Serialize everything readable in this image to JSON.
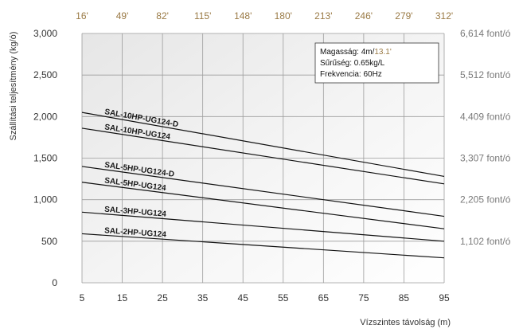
{
  "chart_data": {
    "type": "line",
    "xlabel": "Vízszintes távolság (m)",
    "ylabel": "Szállítási teljesítmény (kg/ó)",
    "xlim": [
      5,
      95
    ],
    "ylim": [
      0,
      3000
    ],
    "x_ticks": [
      "5",
      "15",
      "25",
      "35",
      "45",
      "55",
      "65",
      "75",
      "85",
      "95"
    ],
    "y_ticks": [
      "0",
      "500",
      "1,000",
      "1,500",
      "2,000",
      "2,500",
      "3,000"
    ],
    "top_ticks": [
      "16'",
      "49'",
      "82'",
      "115'",
      "148'",
      "180'",
      "213'",
      "246'",
      "279'",
      "312'"
    ],
    "right_ticks": [
      "1,102 font/ó",
      "2,205 font/ó",
      "3,307 font/ó",
      "4,409 font/ó",
      "5,512 font/ó",
      "6,614 font/ó"
    ],
    "grid": true,
    "x": [
      5,
      95
    ],
    "series": [
      {
        "name": "SAL-10HP-UG124-D",
        "values": [
          2050,
          1280
        ]
      },
      {
        "name": "SAL-10HP-UG124",
        "values": [
          1860,
          1190
        ]
      },
      {
        "name": "SAL-5HP-UG124-D",
        "values": [
          1400,
          800
        ]
      },
      {
        "name": "SAL-5HP-UG124",
        "values": [
          1210,
          650
        ]
      },
      {
        "name": "SAL-3HP-UG124",
        "values": [
          850,
          500
        ]
      },
      {
        "name": "SAL-2HP-UG124",
        "values": [
          590,
          300
        ]
      }
    ],
    "info_box": {
      "height_label": "Magasság: 4m/",
      "height_ft": "13.1'",
      "density": "Sűrűség: 0.65kg/L",
      "frequency": "Frekvencia: 60Hz"
    }
  }
}
